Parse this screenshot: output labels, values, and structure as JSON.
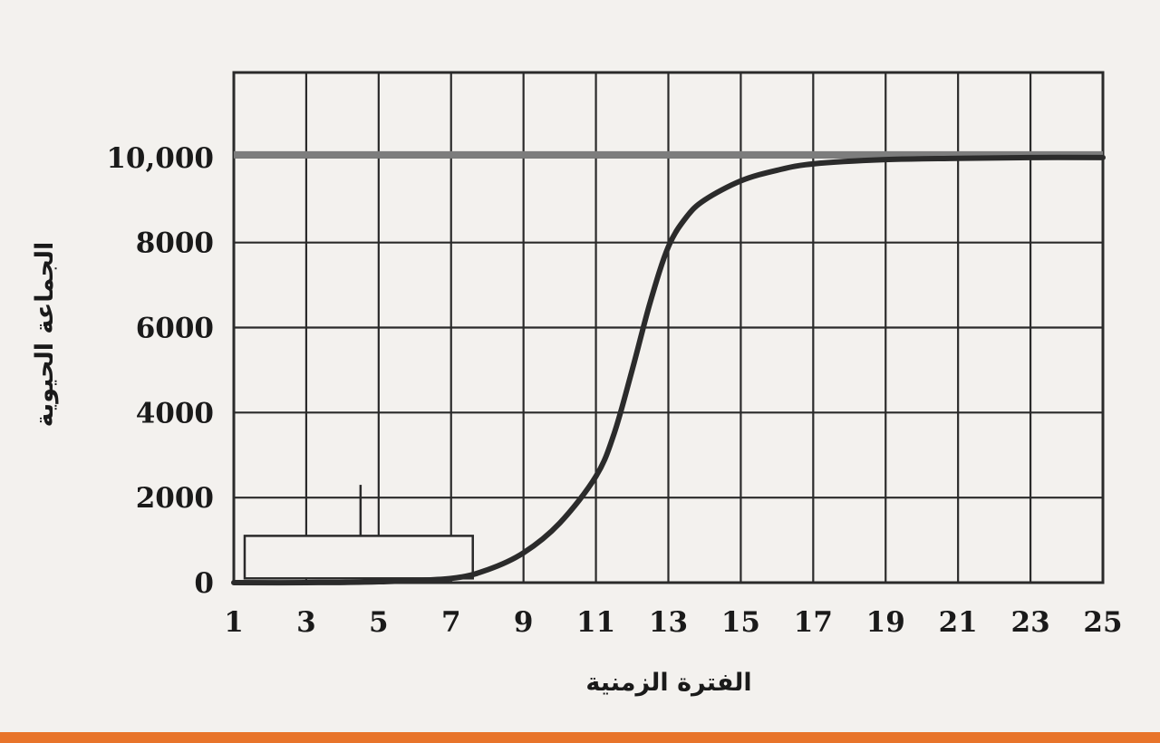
{
  "chart_data": {
    "type": "line",
    "title": "",
    "xlabel": "الفترة الزمنية",
    "ylabel": "الجماعة الحيوية",
    "xlim": [
      1,
      25
    ],
    "ylim": [
      0,
      12000
    ],
    "x_ticks": [
      "1",
      "3",
      "5",
      "7",
      "9",
      "11",
      "13",
      "15",
      "17",
      "19",
      "21",
      "23",
      "25"
    ],
    "y_ticks": [
      "0",
      "2000",
      "4000",
      "6000",
      "8000",
      "10,000"
    ],
    "grid": true,
    "carrying_capacity": 10000,
    "series": [
      {
        "x": [
          1,
          3,
          5,
          7,
          8,
          9,
          10,
          11,
          11.5,
          12,
          12.5,
          13,
          13.5,
          14,
          15,
          16,
          17,
          19,
          21,
          23,
          25
        ],
        "y": [
          0,
          0,
          20,
          100,
          300,
          700,
          1400,
          2500,
          3500,
          5000,
          6600,
          7900,
          8600,
          9000,
          9450,
          9700,
          9850,
          9950,
          9980,
          10000,
          10000
        ]
      }
    ],
    "annotation_box": {
      "x_range": [
        1.3,
        7.6
      ],
      "y_range": [
        100,
        1100
      ],
      "marker_x": 4.5,
      "marker_y_range": [
        1100,
        2300
      ]
    }
  },
  "colors": {
    "background": "#f3f1ee",
    "grid": "#2a2a2a",
    "curve": "#2b2b2b",
    "capacity_line": "#7d7d7d",
    "bottom_band": "#e8742a"
  }
}
